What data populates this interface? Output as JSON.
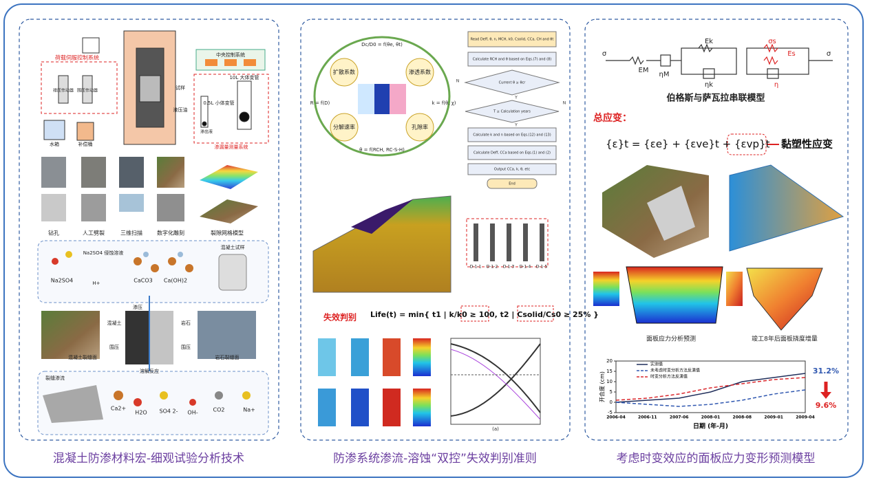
{
  "captions": [
    "混凝土防渗材料宏-细观试验分析技术",
    "防渗系统渗流-溶蚀“双控”失效判别准则",
    "考虑时变效应的面板应力变形预测模型"
  ],
  "left": {
    "apparatus": [
      "荷载伺服控制系统",
      "排压作动器",
      "围压作动器",
      "水箱",
      "补偿桶",
      "试样",
      "液压油",
      "中央控制系统",
      "10L 大体变管",
      "0.5L 小体变管",
      "渗出液",
      "渗漏量测量系统"
    ],
    "process": [
      "钻孔",
      "人工劈裂",
      "三维扫描",
      "数字化雕刻",
      "裂隙网格模型"
    ],
    "chemistry": [
      "Na2SO4 侵蚀溶液",
      "Na2SO4",
      "H+",
      "CaCO3",
      "Ca(OH)2",
      "混凝土试样"
    ],
    "seepage": [
      "渗压",
      "混凝土",
      "岩石",
      "围压",
      "围压",
      "混凝土裂缝面",
      "岩石裂缝面",
      "溶解反应"
    ],
    "reaction": [
      "裂缝渗流",
      "Ca2+",
      "H2O",
      "SO4 2-",
      "OH-",
      "CO2",
      "Na+"
    ]
  },
  "middle": {
    "cycle": [
      "扩散系数",
      "渗透系数",
      "分解速率",
      "孔隙率",
      "Dc/D0 = f(θe, θt)",
      "R = f(D)",
      "k = f(θ, χ)",
      "θ = f(RCH, RC-S-H)"
    ],
    "flow": [
      "Read Deff, θ, n, MCH, k0, Csolid, CCa, CH and θt",
      "Calculate RCH and θ based on Eqs.(7) and (8)",
      "Current θ ≥ θcr",
      "T ≥ Calculation years",
      "Calculate k and n based on Eqs.(12) and (13)",
      "Calculate Deff, CCa based on Eqs.(1) and (2)",
      "Output CCa, k, θ, etc",
      "End",
      "N",
      "Y",
      "N",
      "Y"
    ],
    "sections": [
      "D-1-1",
      "D-1-2",
      "D-1-3",
      "D-1-4",
      "D-1-5"
    ],
    "criterion_label": "失效判别",
    "criterion": "Life(t) = min{ t1 | k/k0 ≥ 100, t2 | Csolid/Cs0 ≥ 25% }",
    "plot_label": "(a)"
  },
  "right": {
    "model_caption": "伯格斯与萨瓦拉串联模型",
    "total_strain": "总应变：",
    "formula": "{ε}t = {εe} + {εve}t + {εvp}t",
    "viscoplastic": "黏塑性应变",
    "symbols": [
      "σ",
      "σ",
      "EM",
      "ηM",
      "Ek",
      "ηk",
      "σs",
      "Es",
      "η"
    ],
    "stress_caption": "面板应力分析预测",
    "deflection_caption": "竣工8年后面板挠度增量",
    "pct_high": "31.2%",
    "pct_low": "9.6%"
  },
  "chart_data": {
    "type": "line",
    "x_label": "日期 (年-月)",
    "y_label": "开合度 (cm)",
    "categories": [
      "2006-04",
      "2006-11",
      "2007-06",
      "2008-01",
      "2008-08",
      "2009-01",
      "2009-04"
    ],
    "series": [
      {
        "name": "实测值",
        "color": "#1f2d5a",
        "dash": false,
        "values": [
          0,
          1,
          2,
          5,
          10,
          12,
          14
        ]
      },
      {
        "name": "未考虑时变分析方法反演值",
        "color": "#2f57b0",
        "dash": true,
        "values": [
          0,
          -1,
          -2,
          -1,
          1,
          4,
          6
        ]
      },
      {
        "name": "时变分析方法反演值",
        "color": "#d9262b",
        "dash": true,
        "values": [
          1,
          2,
          4,
          7,
          9,
          11,
          12
        ]
      }
    ],
    "ylim": [
      -5,
      20
    ],
    "yticks": [
      -5,
      0,
      5,
      10,
      15,
      20
    ]
  }
}
